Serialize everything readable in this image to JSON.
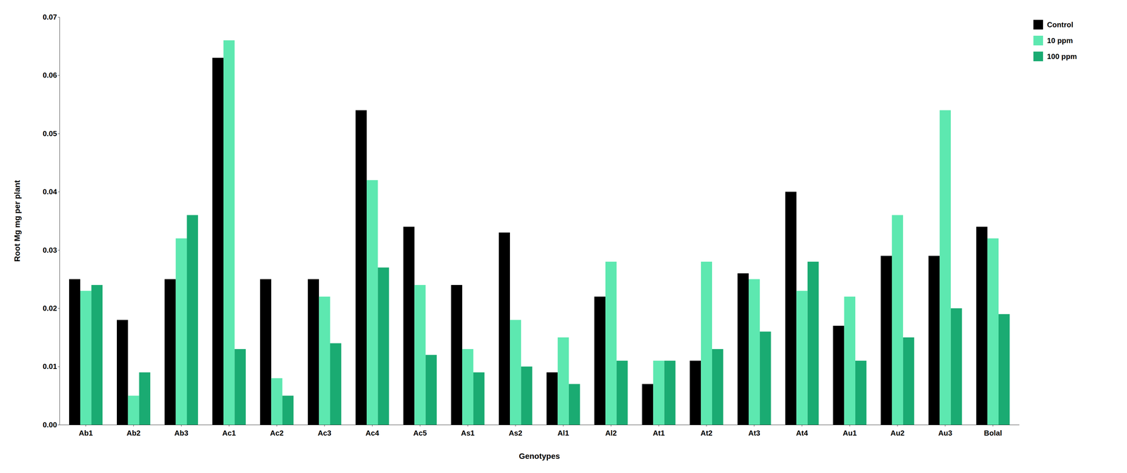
{
  "chart_data": {
    "type": "bar",
    "xlabel": "Genotypes",
    "ylabel": "Root Mg mg per plant",
    "categories": [
      "Ab1",
      "Ab2",
      "Ab3",
      "Ac1",
      "Ac2",
      "Ac3",
      "Ac4",
      "Ac5",
      "As1",
      "As2",
      "Al1",
      "Al2",
      "At1",
      "At2",
      "At3",
      "At4",
      "Au1",
      "Au2",
      "Au3",
      "Bolal"
    ],
    "series": [
      {
        "name": "Control",
        "color": "#000000",
        "values": [
          0.025,
          0.018,
          0.025,
          0.063,
          0.025,
          0.025,
          0.054,
          0.034,
          0.024,
          0.033,
          0.009,
          0.022,
          0.007,
          0.011,
          0.026,
          0.04,
          0.017,
          0.029,
          0.029,
          0.034
        ]
      },
      {
        "name": "10 ppm",
        "color": "#5de8b0",
        "values": [
          0.023,
          0.005,
          0.032,
          0.066,
          0.008,
          0.022,
          0.042,
          0.024,
          0.013,
          0.018,
          0.015,
          0.028,
          0.011,
          0.028,
          0.025,
          0.023,
          0.022,
          0.036,
          0.054,
          0.032
        ]
      },
      {
        "name": "100 ppm",
        "color": "#1aab72",
        "values": [
          0.024,
          0.009,
          0.036,
          0.013,
          0.005,
          0.014,
          0.027,
          0.012,
          0.009,
          0.01,
          0.007,
          0.011,
          0.011,
          0.013,
          0.016,
          0.028,
          0.011,
          0.015,
          0.02,
          0.019
        ]
      }
    ],
    "ylim": [
      0,
      0.07
    ],
    "yticks": [
      {
        "value": 0,
        "label": "0.00"
      },
      0.01,
      0.02,
      0.03,
      0.04,
      0.05,
      0.06,
      0.07
    ],
    "grid": false,
    "legend": "upper right"
  }
}
